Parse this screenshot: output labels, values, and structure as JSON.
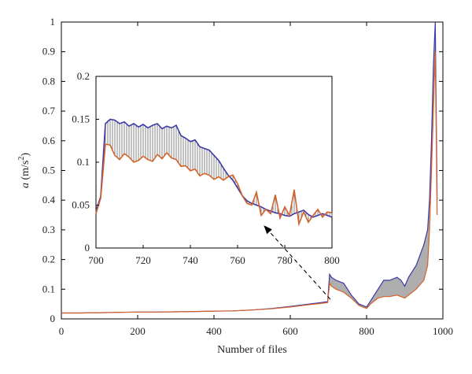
{
  "chart_data": [
    {
      "type": "line",
      "title": "",
      "xlabel": "Number of files",
      "ylabel": "a (m/s²)",
      "ylabel_parts": {
        "symbol": "a",
        "unit_open": " (m/s",
        "unit_exp": "2",
        "unit_close": ")"
      },
      "xlim": [
        0,
        1000
      ],
      "ylim": [
        0,
        1
      ],
      "xticks": [
        0,
        200,
        400,
        600,
        800,
        1000
      ],
      "yticks": [
        0,
        0.1,
        0.2,
        0.3,
        0.4,
        0.5,
        0.6,
        0.7,
        0.8,
        0.9,
        1
      ],
      "grid": false,
      "annotation": "dashed arrow from x=700-800 region to inset",
      "series": [
        {
          "color": "#3a3aa8",
          "x": [
            0,
            50,
            100,
            150,
            200,
            250,
            300,
            350,
            400,
            450,
            500,
            550,
            600,
            650,
            680,
            698,
            703,
            708,
            720,
            740,
            760,
            780,
            800,
            810,
            830,
            845,
            860,
            880,
            890,
            900,
            910,
            930,
            950,
            960,
            965,
            970,
            975,
            980,
            985
          ],
          "y": [
            0.02,
            0.02,
            0.021,
            0.022,
            0.023,
            0.023,
            0.024,
            0.025,
            0.026,
            0.027,
            0.03,
            0.035,
            0.042,
            0.05,
            0.055,
            0.058,
            0.15,
            0.14,
            0.13,
            0.12,
            0.08,
            0.05,
            0.04,
            0.06,
            0.1,
            0.13,
            0.13,
            0.14,
            0.13,
            0.11,
            0.14,
            0.18,
            0.25,
            0.3,
            0.4,
            0.6,
            0.85,
            1.0,
            0.4
          ]
        },
        {
          "color": "#d4622a",
          "x": [
            0,
            50,
            100,
            150,
            200,
            250,
            300,
            350,
            400,
            450,
            500,
            550,
            600,
            650,
            680,
            698,
            703,
            708,
            720,
            740,
            760,
            780,
            800,
            810,
            830,
            845,
            860,
            880,
            890,
            900,
            910,
            930,
            950,
            960,
            965,
            970,
            975,
            980,
            985
          ],
          "y": [
            0.02,
            0.02,
            0.021,
            0.022,
            0.023,
            0.023,
            0.024,
            0.025,
            0.026,
            0.027,
            0.03,
            0.034,
            0.04,
            0.048,
            0.052,
            0.055,
            0.12,
            0.11,
            0.1,
            0.09,
            0.07,
            0.045,
            0.035,
            0.05,
            0.07,
            0.075,
            0.075,
            0.08,
            0.075,
            0.07,
            0.08,
            0.1,
            0.13,
            0.18,
            0.3,
            0.5,
            0.7,
            0.9,
            0.35
          ]
        }
      ]
    },
    {
      "type": "line",
      "title": "",
      "xlim": [
        700,
        800
      ],
      "ylim": [
        0,
        0.2
      ],
      "xticks": [
        700,
        720,
        740,
        760,
        780,
        800
      ],
      "yticks": [
        0,
        0.05,
        0.1,
        0.15,
        0.2
      ],
      "series": [
        {
          "color": "#3a3aa8",
          "x": [
            700,
            702,
            704,
            706,
            708,
            710,
            712,
            714,
            716,
            718,
            720,
            722,
            724,
            726,
            728,
            730,
            732,
            734,
            736,
            738,
            740,
            742,
            744,
            746,
            748,
            750,
            752,
            754,
            756,
            758,
            760,
            762,
            764,
            766,
            768,
            770,
            772,
            774,
            776,
            778,
            780,
            782,
            784,
            786,
            788,
            790,
            792,
            794,
            796,
            798,
            800
          ],
          "y": [
            0.043,
            0.06,
            0.145,
            0.15,
            0.149,
            0.145,
            0.147,
            0.142,
            0.145,
            0.141,
            0.144,
            0.14,
            0.143,
            0.145,
            0.139,
            0.142,
            0.14,
            0.143,
            0.131,
            0.128,
            0.124,
            0.126,
            0.118,
            0.116,
            0.114,
            0.108,
            0.102,
            0.093,
            0.085,
            0.079,
            0.07,
            0.061,
            0.055,
            0.052,
            0.05,
            0.048,
            0.045,
            0.043,
            0.041,
            0.04,
            0.038,
            0.037,
            0.04,
            0.042,
            0.044,
            0.039,
            0.036,
            0.038,
            0.04,
            0.038,
            0.036
          ]
        },
        {
          "color": "#d4622a",
          "x": [
            700,
            702,
            704,
            706,
            708,
            710,
            712,
            714,
            716,
            718,
            720,
            722,
            724,
            726,
            728,
            730,
            732,
            734,
            736,
            738,
            740,
            742,
            744,
            746,
            748,
            750,
            752,
            754,
            756,
            758,
            760,
            762,
            764,
            766,
            768,
            770,
            772,
            774,
            776,
            778,
            780,
            782,
            784,
            786,
            788,
            790,
            792,
            794,
            796,
            798,
            800
          ],
          "y": [
            0.04,
            0.058,
            0.121,
            0.12,
            0.108,
            0.103,
            0.11,
            0.106,
            0.1,
            0.102,
            0.107,
            0.103,
            0.101,
            0.109,
            0.104,
            0.111,
            0.105,
            0.103,
            0.095,
            0.096,
            0.09,
            0.092,
            0.084,
            0.087,
            0.085,
            0.08,
            0.083,
            0.079,
            0.083,
            0.085,
            0.075,
            0.061,
            0.052,
            0.05,
            0.065,
            0.038,
            0.045,
            0.04,
            0.062,
            0.035,
            0.048,
            0.038,
            0.068,
            0.028,
            0.042,
            0.03,
            0.038,
            0.045,
            0.036,
            0.042,
            0.041
          ]
        }
      ]
    }
  ]
}
